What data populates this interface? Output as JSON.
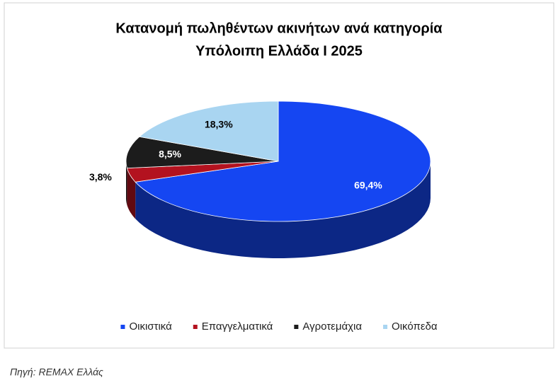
{
  "chart_data": {
    "type": "pie",
    "title": [
      "Κατανομή πωληθέντων ακινήτων ανά κατηγορία",
      "Υπόλοιπη Ελλάδα I 2025"
    ],
    "categories": [
      "Οικιστικά",
      "Επαγγελματικά",
      "Αγροτεμάχια",
      "Οικόπεδα"
    ],
    "values": [
      69.4,
      3.8,
      8.5,
      18.3
    ],
    "value_labels": [
      "69,4%",
      "3,8%",
      "8,5%",
      "18,3%"
    ],
    "colors": [
      "#1546f2",
      "#b3121f",
      "#1c1c1c",
      "#a9d5f1"
    ],
    "legend": "bottom",
    "source": "Πηγή: REMAX Ελλάς"
  }
}
